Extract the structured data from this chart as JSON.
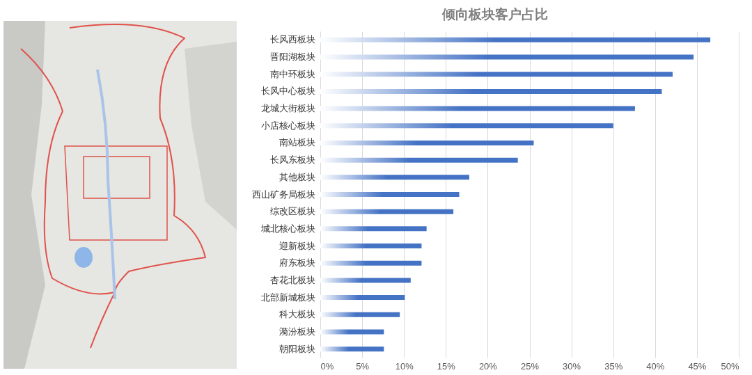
{
  "chart_data": {
    "type": "bar",
    "title": "倾向板块客户占比",
    "orientation": "horizontal",
    "categories": [
      "长风西板块",
      "晋阳湖板块",
      "南中环板块",
      "长风中心板块",
      "龙城大街板块",
      "小店核心板块",
      "南站板块",
      "长风东板块",
      "其他板块",
      "西山矿务局板块",
      "综改区板块",
      "城北核心板块",
      "迎新板块",
      "府东板块",
      "杏花北板块",
      "北部新城板块",
      "科大板块",
      "漪汾板块",
      "朝阳板块"
    ],
    "values": [
      46.6,
      44.6,
      42.1,
      40.8,
      37.6,
      35.0,
      25.5,
      23.6,
      17.8,
      16.6,
      15.9,
      12.7,
      12.1,
      12.1,
      10.8,
      10.1,
      9.5,
      7.6,
      7.6
    ],
    "color": "#4472c4",
    "xlim": [
      0,
      50
    ],
    "xticks": [
      {
        "value": 0,
        "label": "0%"
      },
      {
        "value": 5,
        "label": "5%"
      },
      {
        "value": 10,
        "label": "10%"
      },
      {
        "value": 15,
        "label": "15%"
      },
      {
        "value": 20,
        "label": "20%"
      },
      {
        "value": 25,
        "label": "25%"
      },
      {
        "value": 30,
        "label": "30%"
      },
      {
        "value": 35,
        "label": "35%"
      },
      {
        "value": 40,
        "label": "40%"
      },
      {
        "value": 45,
        "label": "45%"
      },
      {
        "value": 50,
        "label": "50%"
      }
    ],
    "grid": "x"
  }
}
